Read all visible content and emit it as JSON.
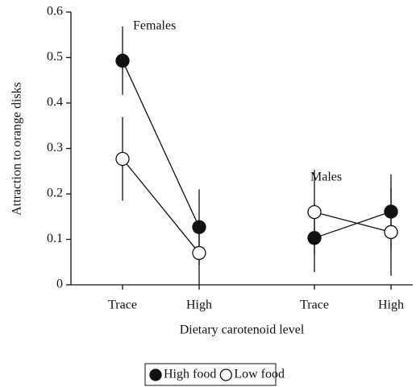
{
  "chart_data": {
    "type": "line",
    "y_label": "Attraction to orange disks",
    "x_label": "Dietary carotenoid level",
    "annotations": [
      "Females",
      "Males"
    ],
    "categories": [
      "Trace",
      "High",
      "Trace",
      "High"
    ],
    "series": [
      {
        "name": "High food",
        "color": "#111111",
        "values": [
          0.493,
          0.127,
          0.103,
          0.161
        ],
        "errors": [
          0.075,
          0.083,
          0.075,
          0.082
        ]
      },
      {
        "name": "Low food",
        "color": "#ffffff",
        "values": [
          0.277,
          0.07,
          0.16,
          0.116
        ],
        "errors": [
          0.092,
          0.07,
          0.093,
          0.096
        ]
      }
    ],
    "ylim": [
      0,
      0.6
    ],
    "yticks": [
      0,
      0.1,
      0.2,
      0.3,
      0.4,
      0.5,
      0.6
    ]
  }
}
